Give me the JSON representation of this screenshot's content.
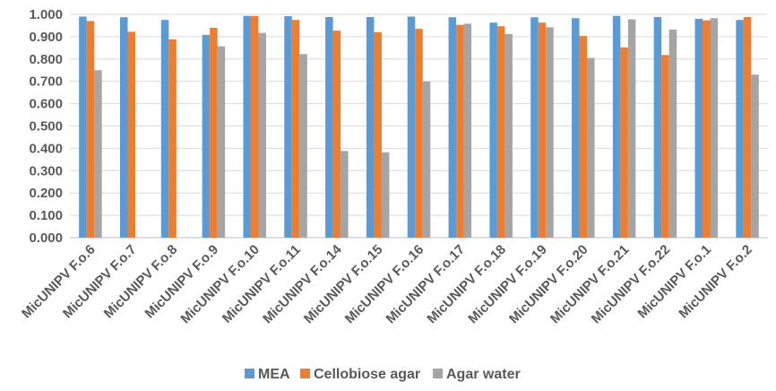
{
  "chart_data": {
    "type": "bar",
    "categories": [
      "MicUNIPV F.o.6",
      "MicUNIPV F.o.7",
      "MicUNIPV F.o.8",
      "MicUNIPV F.o.9",
      "MicUNIPV F.o.10",
      "MicUNIPV F.o.11",
      "MicUNIPV F.o.14",
      "MicUNIPV F.o.15",
      "MicUNIPV F.o.16",
      "MicUNIPV F.o.17",
      "MicUNIPV F.o.18",
      "MicUNIPV F.o.19",
      "MicUNIPV F.o.20",
      "MicUNIPV F.o.21",
      "MicUNIPV F.o.22",
      "MicUNIPV F.o.1",
      "MicUNIPV F.o.2"
    ],
    "series": [
      {
        "name": "MEA",
        "color": "#5b9bd5",
        "values": [
          0.99,
          0.987,
          0.975,
          0.908,
          0.993,
          0.992,
          0.988,
          0.988,
          0.99,
          0.987,
          0.963,
          0.987,
          0.983,
          0.993,
          0.988,
          0.98,
          0.975
        ]
      },
      {
        "name": "Cellobiose agar",
        "color": "#ed7d31",
        "values": [
          0.97,
          0.922,
          0.888,
          0.94,
          0.993,
          0.975,
          0.927,
          0.92,
          0.935,
          0.953,
          0.947,
          0.963,
          0.903,
          0.852,
          0.818,
          0.973,
          0.988
        ]
      },
      {
        "name": "Agar water",
        "color": "#a5a5a5",
        "values": [
          0.75,
          null,
          null,
          0.857,
          0.917,
          0.822,
          0.388,
          0.382,
          0.7,
          0.958,
          0.912,
          0.942,
          0.805,
          0.978,
          0.932,
          0.983,
          0.73
        ]
      }
    ],
    "yticks": [
      "0.000",
      "0.100",
      "0.200",
      "0.300",
      "0.400",
      "0.500",
      "0.600",
      "0.700",
      "0.800",
      "0.900",
      "1.000"
    ],
    "ylim": [
      0,
      1
    ],
    "grid": true,
    "legend_position": "bottom"
  }
}
